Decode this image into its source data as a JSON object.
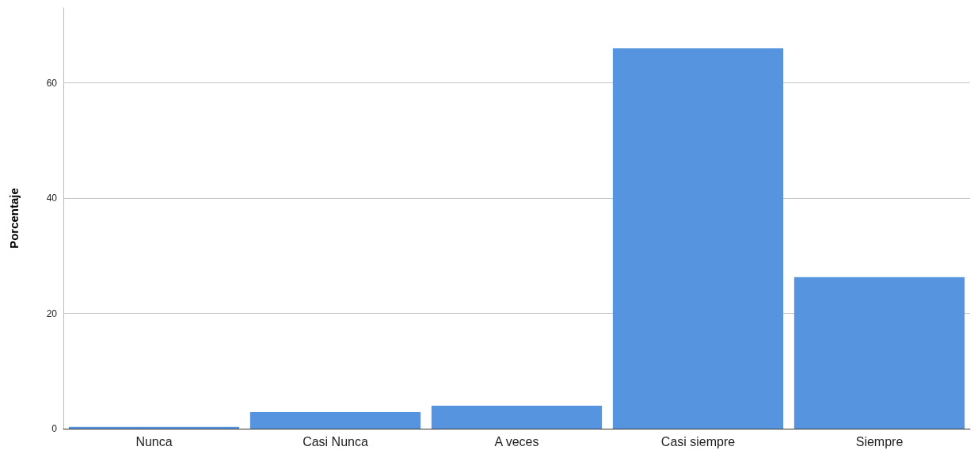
{
  "chart_data": {
    "type": "bar",
    "ylabel": "Porcentaje",
    "categories": [
      "Nunca",
      "Casi Nunca",
      "A veces",
      "Casi siempre",
      "Siempre"
    ],
    "values": [
      0.3,
      2.9,
      4.0,
      66.0,
      26.3
    ],
    "color": "#5794e0",
    "ylim": [
      0,
      73
    ],
    "yticks": [
      0,
      20,
      40,
      60
    ],
    "grid": "y"
  }
}
